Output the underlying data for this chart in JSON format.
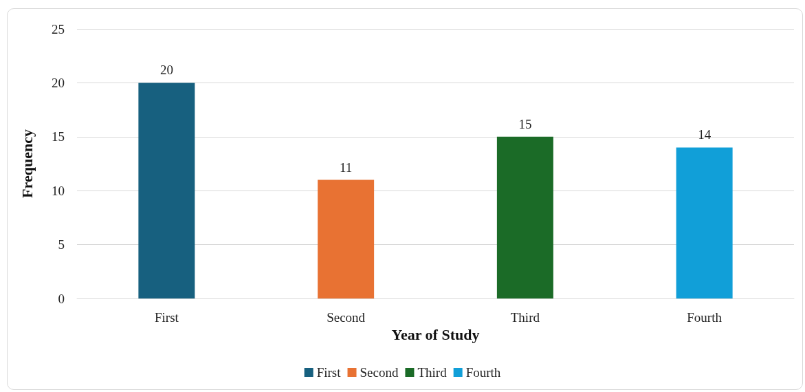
{
  "chart_data": {
    "type": "bar",
    "xlabel": "Year of Study",
    "ylabel": "Frequency",
    "categories": [
      "First",
      "Second",
      "Third",
      "Fourth"
    ],
    "series": [
      {
        "name": "First",
        "color": "#17607f",
        "values": [
          20,
          null,
          null,
          null
        ]
      },
      {
        "name": "Second",
        "color": "#e87233",
        "values": [
          null,
          11,
          null,
          null
        ]
      },
      {
        "name": "Third",
        "color": "#1b6b27",
        "values": [
          null,
          null,
          15,
          null
        ]
      },
      {
        "name": "Fourth",
        "color": "#119fd8",
        "values": [
          null,
          null,
          null,
          14
        ]
      }
    ],
    "stacked": true,
    "ylim": [
      0,
      25
    ],
    "yticks": [
      0,
      5,
      10,
      15,
      20,
      25
    ],
    "grid": "y",
    "legend": "bottom",
    "data_labels": true
  }
}
